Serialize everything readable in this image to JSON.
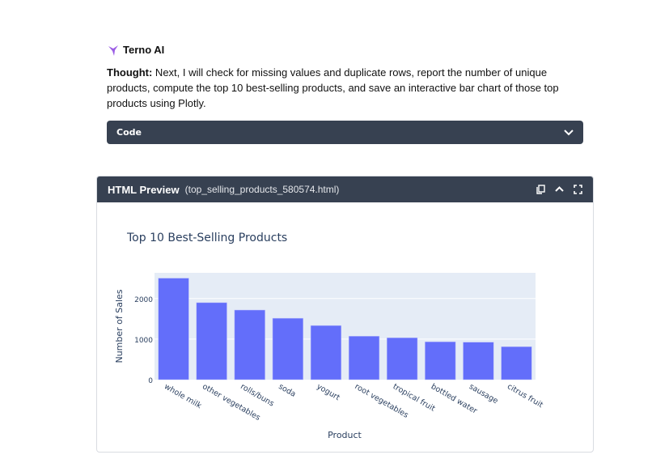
{
  "assistant": {
    "name": "Terno AI",
    "thought_label": "Thought:",
    "thought_text": " Next, I will check for missing values and duplicate rows, report the number of unique products, compute the top 10 best-selling products, and save an interactive bar chart of those top products using Plotly."
  },
  "code_panel": {
    "label": "Code",
    "icon": "chevron-down-icon"
  },
  "preview": {
    "title": "HTML Preview",
    "filename": "(top_selling_products_580574.html)",
    "icons": [
      "copy-icon",
      "chevron-up-icon",
      "fullscreen-icon"
    ]
  },
  "chart_data": {
    "type": "bar",
    "title": "Top 10 Best-Selling Products",
    "xlabel": "Product",
    "ylabel": "Number of Sales",
    "categories": [
      "whole milk",
      "other vegetables",
      "rolls/buns",
      "soda",
      "yogurt",
      "root vegetables",
      "tropical fruit",
      "bottled water",
      "sausage",
      "citrus fruit"
    ],
    "values": [
      2502,
      1898,
      1716,
      1514,
      1334,
      1071,
      1032,
      933,
      924,
      812
    ],
    "ylim": [
      0,
      2634
    ],
    "yticks": [
      "0",
      "1000",
      "2000"
    ],
    "ytick_values": [
      0,
      1000,
      2000
    ],
    "grid": true,
    "colors": {
      "bar": "#636efa",
      "plot_bg": "#e5ecf6"
    }
  }
}
